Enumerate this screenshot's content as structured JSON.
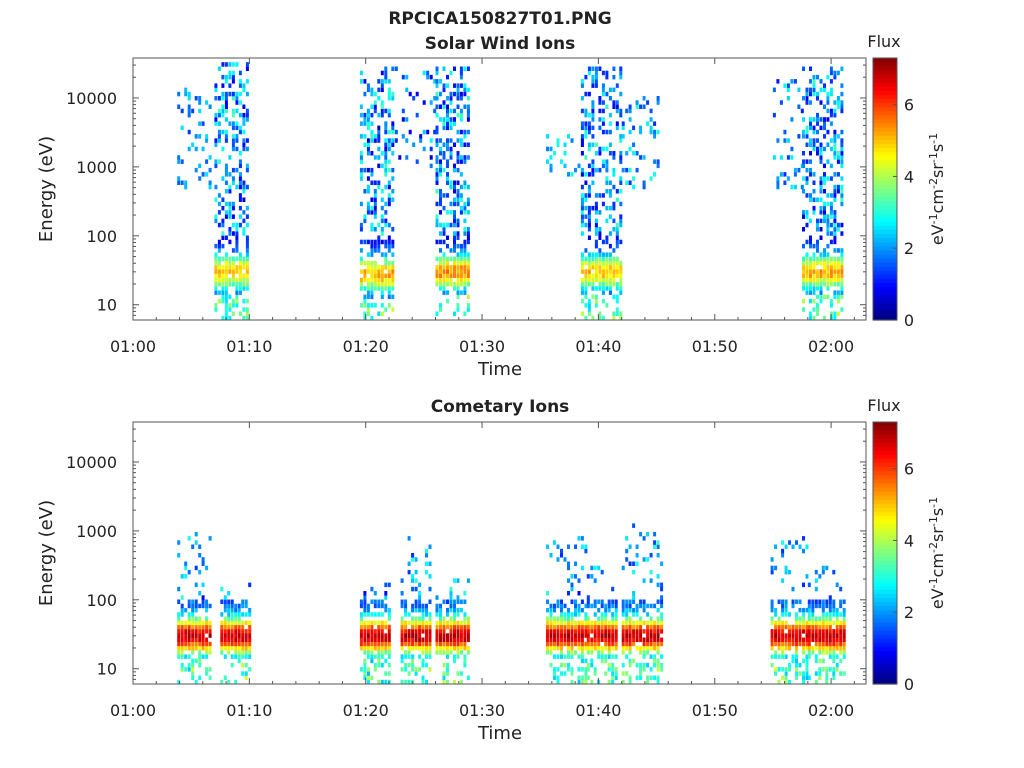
{
  "figure_title": "RPCICA150827T01.PNG",
  "chart_data": [
    {
      "type": "heatmap",
      "title": "Solar Wind Ions",
      "xlabel": "Time",
      "ylabel": "Energy (eV)",
      "x_ticks": [
        "01:00",
        "01:10",
        "01:20",
        "01:30",
        "01:40",
        "01:50",
        "02:00"
      ],
      "x_range_min": [
        0,
        63
      ],
      "y_ticks": [
        10,
        100,
        1000,
        10000
      ],
      "y_scale": "log",
      "y_range_eV": [
        6,
        38000
      ],
      "colorbar": {
        "title": "Flux",
        "label": "eV^-1 cm^-2 sr^-1 s^-1",
        "ticks": [
          0,
          2,
          4,
          6
        ],
        "range": [
          0,
          7.3
        ],
        "colormap": "jet"
      },
      "bursts": [
        {
          "start": 3.5,
          "end": 6.5,
          "energy_min": 500,
          "energy_max": 15000,
          "flux_min": 1.2,
          "flux_max": 2.6,
          "density": 0.18
        },
        {
          "start": 7.0,
          "end": 9.8,
          "energy_min": 6,
          "energy_max": 35000,
          "peak_energy": 30,
          "peak_flux": 5.0,
          "density": 0.55
        },
        {
          "start": 19.5,
          "end": 22.5,
          "energy_min": 6,
          "energy_max": 30000,
          "peak_energy": 28,
          "peak_flux": 5.2,
          "density": 0.55
        },
        {
          "start": 22.5,
          "end": 26.0,
          "energy_min": 1000,
          "energy_max": 30000,
          "flux_min": 0.5,
          "flux_max": 2.8,
          "density": 0.12
        },
        {
          "start": 26.0,
          "end": 29.0,
          "energy_min": 6,
          "energy_max": 30000,
          "peak_energy": 30,
          "peak_flux": 5.4,
          "density": 0.55
        },
        {
          "start": 35.5,
          "end": 38.5,
          "energy_min": 700,
          "energy_max": 3000,
          "flux_min": 1.8,
          "flux_max": 3.0,
          "density": 0.2
        },
        {
          "start": 38.5,
          "end": 42.0,
          "energy_min": 6,
          "energy_max": 30000,
          "peak_energy": 30,
          "peak_flux": 5.0,
          "density": 0.55
        },
        {
          "start": 42.0,
          "end": 45.0,
          "energy_min": 500,
          "energy_max": 10000,
          "flux_min": 1.2,
          "flux_max": 3.0,
          "density": 0.18
        },
        {
          "start": 55.0,
          "end": 57.5,
          "energy_min": 500,
          "energy_max": 20000,
          "flux_min": 1.0,
          "flux_max": 2.8,
          "density": 0.18
        },
        {
          "start": 57.5,
          "end": 61.0,
          "energy_min": 6,
          "energy_max": 30000,
          "peak_energy": 30,
          "peak_flux": 5.2,
          "density": 0.55
        }
      ]
    },
    {
      "type": "heatmap",
      "title": "Cometary Ions",
      "xlabel": "Time",
      "ylabel": "Energy (eV)",
      "x_ticks": [
        "01:00",
        "01:10",
        "01:20",
        "01:30",
        "01:40",
        "01:50",
        "02:00"
      ],
      "x_range_min": [
        0,
        63
      ],
      "y_ticks": [
        10,
        100,
        1000,
        10000
      ],
      "y_scale": "log",
      "y_range_eV": [
        6,
        38000
      ],
      "colorbar": {
        "title": "Flux",
        "label": "eV^-1 cm^-2 sr^-1 s^-1",
        "ticks": [
          0,
          2,
          4,
          6
        ],
        "range": [
          0,
          7.3
        ],
        "colormap": "jet"
      },
      "bursts": [
        {
          "start": 3.8,
          "end": 6.5,
          "energy_min": 6,
          "energy_max": 1300,
          "peak_energy": 30,
          "peak_flux": 6.8,
          "density": 0.65
        },
        {
          "start": 7.5,
          "end": 10.0,
          "energy_min": 6,
          "energy_max": 200,
          "peak_energy": 30,
          "peak_flux": 6.8,
          "density": 0.65
        },
        {
          "start": 19.5,
          "end": 22.0,
          "energy_min": 6,
          "energy_max": 200,
          "peak_energy": 30,
          "peak_flux": 6.8,
          "density": 0.65
        },
        {
          "start": 23.0,
          "end": 25.5,
          "energy_min": 6,
          "energy_max": 900,
          "peak_energy": 30,
          "peak_flux": 6.8,
          "density": 0.65
        },
        {
          "start": 26.0,
          "end": 29.0,
          "energy_min": 6,
          "energy_max": 200,
          "peak_energy": 30,
          "peak_flux": 6.8,
          "density": 0.65
        },
        {
          "start": 35.5,
          "end": 38.8,
          "energy_min": 6,
          "energy_max": 1000,
          "peak_energy": 30,
          "peak_flux": 6.8,
          "density": 0.65
        },
        {
          "start": 39.0,
          "end": 41.5,
          "energy_min": 6,
          "energy_max": 300,
          "peak_energy": 30,
          "peak_flux": 6.8,
          "density": 0.65
        },
        {
          "start": 42.0,
          "end": 45.5,
          "energy_min": 6,
          "energy_max": 1300,
          "peak_energy": 30,
          "peak_flux": 6.8,
          "density": 0.65
        },
        {
          "start": 54.8,
          "end": 57.8,
          "energy_min": 6,
          "energy_max": 1000,
          "peak_energy": 30,
          "peak_flux": 6.8,
          "density": 0.65
        },
        {
          "start": 58.0,
          "end": 61.0,
          "energy_min": 6,
          "energy_max": 300,
          "peak_energy": 30,
          "peak_flux": 6.8,
          "density": 0.65
        }
      ]
    }
  ]
}
